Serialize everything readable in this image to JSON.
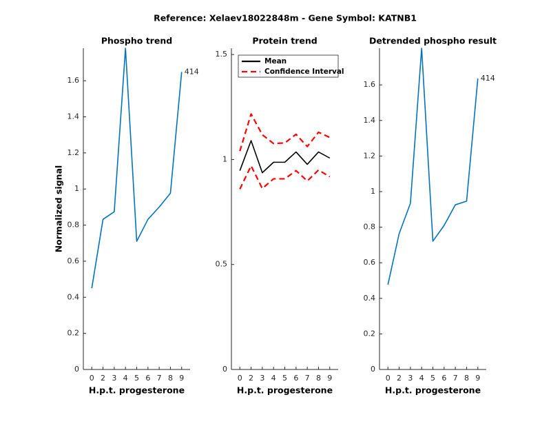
{
  "title": "Reference:  Xelaev18022848m - Gene Symbol:  KATNB1",
  "chart_data": [
    {
      "type": "line",
      "title": "Phospho trend",
      "xlabel": "H.p.t. progesterone",
      "ylabel": "Normalized signal",
      "categories": [
        "0",
        "2",
        "3",
        "4",
        "5",
        "6",
        "7",
        "8",
        "9"
      ],
      "series": [
        {
          "color": "#0072bd",
          "values": [
            0.45,
            0.832,
            0.874,
            1.78,
            0.71,
            0.832,
            0.9,
            0.977,
            1.649
          ]
        }
      ],
      "annotation": "414",
      "ylim": [
        0,
        1.78
      ],
      "yticks": [
        0,
        0.2,
        0.4,
        0.6,
        0.8,
        1,
        1.2,
        1.4,
        1.6
      ]
    },
    {
      "type": "band-line",
      "title": "Protein trend",
      "xlabel": "H.p.t. progesterone",
      "categories": [
        "0",
        "2",
        "3",
        "4",
        "5",
        "6",
        "7",
        "8",
        "9"
      ],
      "series": [
        {
          "name": "Mean",
          "color": "#000000",
          "values": [
            0.947,
            1.09,
            0.937,
            0.987,
            0.987,
            1.036,
            0.977,
            1.036,
            1.007
          ]
        },
        {
          "name": "Confidence Interval",
          "color": "#ff0000",
          "dashed": true,
          "upper": [
            1.04,
            1.217,
            1.118,
            1.076,
            1.079,
            1.12,
            1.062,
            1.13,
            1.105
          ],
          "lower": [
            0.859,
            0.97,
            0.862,
            0.908,
            0.908,
            0.947,
            0.898,
            0.95,
            0.918
          ]
        }
      ],
      "legend": "northwest",
      "ylim": [
        0,
        1.53
      ],
      "yticks": [
        0,
        0.5,
        1,
        1.5
      ]
    },
    {
      "type": "line",
      "title": "Detrended phospho result",
      "xlabel": "H.p.t. progesterone",
      "categories": [
        "0",
        "2",
        "3",
        "4",
        "5",
        "6",
        "7",
        "8",
        "9"
      ],
      "series": [
        {
          "color": "#0072bd",
          "values": [
            0.477,
            0.764,
            0.934,
            1.806,
            0.721,
            0.81,
            0.926,
            0.946,
            1.636
          ]
        }
      ],
      "annotation": "414",
      "ylim": [
        0,
        1.806
      ],
      "yticks": [
        0,
        0.2,
        0.4,
        0.6,
        0.8,
        1,
        1.2,
        1.4,
        1.6
      ]
    }
  ]
}
